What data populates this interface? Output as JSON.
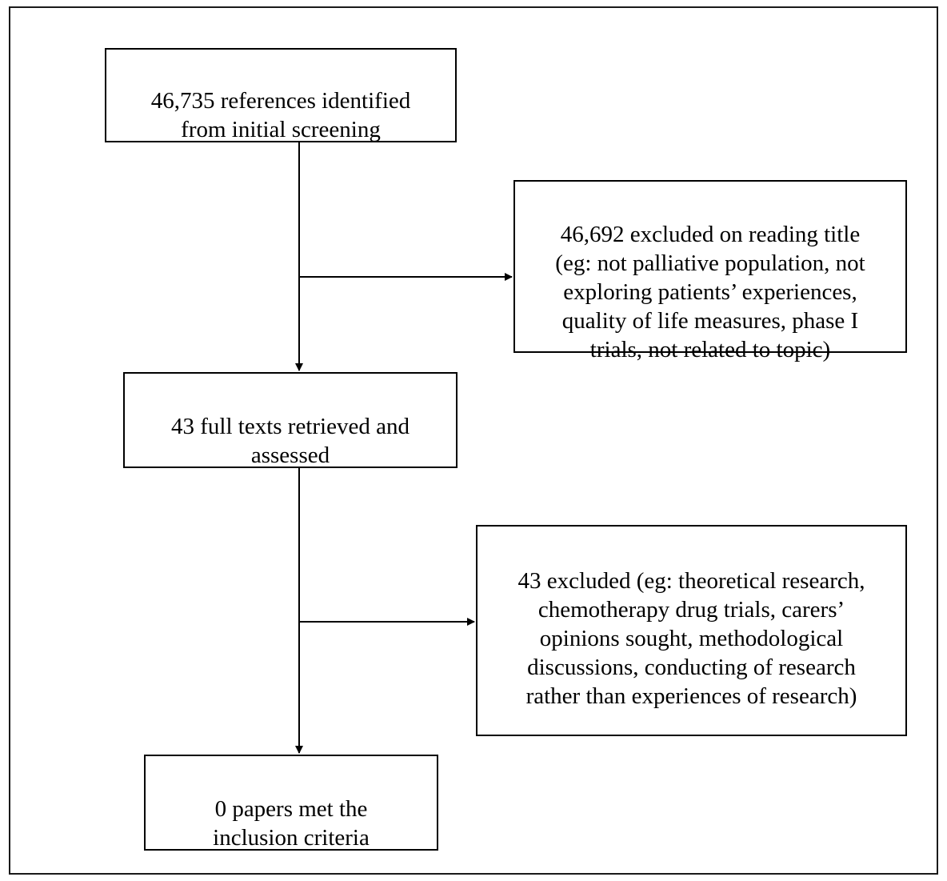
{
  "flowchart": {
    "boxes": {
      "references": "46,735 references identified\nfrom initial screening",
      "excluded_title": "46,692 excluded on reading title\n(eg: not palliative population, not\nexploring patients’ experiences,\nquality of life measures, phase I\ntrials, not related to topic)",
      "fulltexts": "43 full texts retrieved and\nassessed",
      "excluded_fulltext": "43 excluded (eg: theoretical research,\nchemotherapy drug trials, carers’\nopinions sought, methodological\ndiscussions, conducting of research\nrather than experiences of research)",
      "included": "0 papers met the\ninclusion criteria"
    },
    "colors": {
      "line": "#000000",
      "border": "#000000",
      "background": "#ffffff"
    }
  }
}
